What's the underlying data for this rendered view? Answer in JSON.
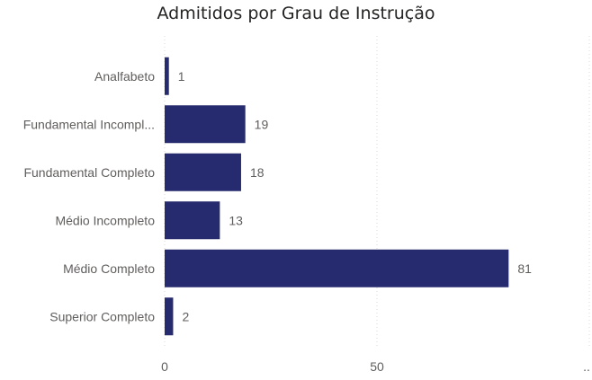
{
  "chart_data": {
    "type": "bar",
    "orientation": "horizontal",
    "title": "Admitidos por Grau de Instrução",
    "categories": [
      "Analfabeto",
      "Fundamental Incompl...",
      "Fundamental Completo",
      "Médio Incompleto",
      "Médio Completo",
      "Superior Completo"
    ],
    "values": [
      1,
      19,
      18,
      13,
      81,
      2
    ],
    "xlim": [
      0,
      100
    ],
    "xticks": [
      "0",
      "50",
      ".."
    ],
    "grid": true,
    "bar_color": "#262A6E",
    "data_labels": true
  }
}
